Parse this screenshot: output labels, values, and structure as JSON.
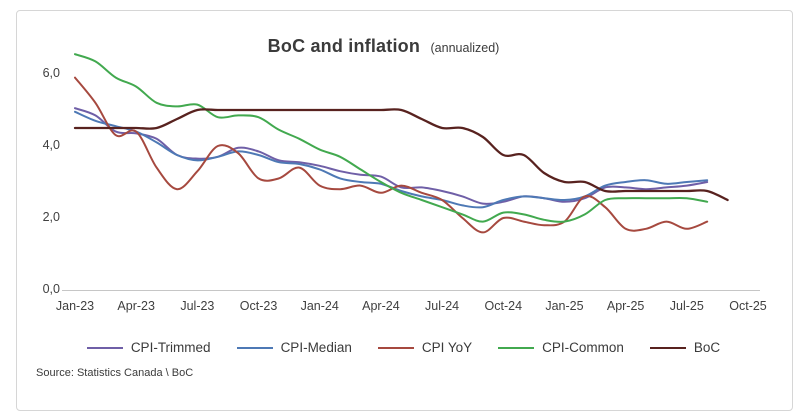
{
  "chart_data": {
    "type": "line",
    "title": "BoC and inflation",
    "title_suffix": "(annualized)",
    "source": "Source: Statistics Canada \\ BoC",
    "legend_position": "bottom",
    "grid": false,
    "ylim": [
      0,
      6
    ],
    "y_tick_values": [
      0,
      2,
      4,
      6
    ],
    "y_tick_labels": [
      "0,0",
      "2,0",
      "4,0",
      "6,0"
    ],
    "x_tick_labels": [
      "Jan-23",
      "Apr-23",
      "Jul-23",
      "Oct-23",
      "Jan-24",
      "Apr-24",
      "Jul-24",
      "Oct-24",
      "Jan-25",
      "Apr-25",
      "Jul-25",
      "Oct-25"
    ],
    "categories": [
      "Jan-23",
      "Feb-23",
      "Mar-23",
      "Apr-23",
      "May-23",
      "Jun-23",
      "Jul-23",
      "Aug-23",
      "Sep-23",
      "Oct-23",
      "Nov-23",
      "Dec-23",
      "Jan-24",
      "Feb-24",
      "Mar-24",
      "Apr-24",
      "May-24",
      "Jun-24",
      "Jul-24",
      "Aug-24",
      "Sep-24",
      "Oct-24",
      "Nov-24",
      "Dec-24",
      "Jan-25",
      "Feb-25",
      "Mar-25",
      "Apr-25",
      "May-25",
      "Jun-25",
      "Jul-25",
      "Aug-25",
      "Sep-25"
    ],
    "series": [
      {
        "name": "CPI-Trimmed",
        "color": "#6f5fa7",
        "values": [
          5.05,
          4.85,
          4.4,
          4.35,
          4.2,
          3.75,
          3.65,
          3.7,
          3.95,
          3.85,
          3.6,
          3.55,
          3.45,
          3.3,
          3.2,
          3.15,
          2.85,
          2.85,
          2.75,
          2.6,
          2.4,
          2.45,
          2.6,
          2.55,
          2.45,
          2.55,
          2.85,
          2.85,
          2.8,
          2.85,
          2.9,
          3.0
        ]
      },
      {
        "name": "CPI-Median",
        "color": "#4e79b5",
        "values": [
          4.95,
          4.7,
          4.55,
          4.4,
          4.1,
          3.75,
          3.6,
          3.7,
          3.85,
          3.75,
          3.55,
          3.5,
          3.35,
          3.1,
          3.0,
          2.95,
          2.75,
          2.6,
          2.5,
          2.35,
          2.3,
          2.5,
          2.6,
          2.55,
          2.5,
          2.6,
          2.9,
          3.0,
          3.05,
          2.95,
          3.0,
          3.05
        ]
      },
      {
        "name": "CPI YoY",
        "color": "#a6493f",
        "values": [
          5.9,
          5.2,
          4.3,
          4.4,
          3.4,
          2.8,
          3.3,
          4.0,
          3.8,
          3.1,
          3.1,
          3.4,
          2.9,
          2.8,
          2.9,
          2.7,
          2.9,
          2.7,
          2.5,
          2.0,
          1.6,
          2.0,
          1.9,
          1.8,
          1.9,
          2.6,
          2.3,
          1.7,
          1.7,
          1.9,
          1.7,
          1.9
        ]
      },
      {
        "name": "CPI-Common",
        "color": "#42a94f",
        "values": [
          6.55,
          6.35,
          5.9,
          5.65,
          5.2,
          5.1,
          5.15,
          4.8,
          4.85,
          4.8,
          4.45,
          4.2,
          3.9,
          3.7,
          3.35,
          3.0,
          2.7,
          2.5,
          2.3,
          2.1,
          1.9,
          2.15,
          2.1,
          1.95,
          1.9,
          2.1,
          2.5,
          2.55,
          2.55,
          2.55,
          2.55,
          2.45
        ]
      },
      {
        "name": "BoC",
        "color": "#58221f",
        "values": [
          4.5,
          4.5,
          4.5,
          4.5,
          4.5,
          4.75,
          5.0,
          5.0,
          5.0,
          5.0,
          5.0,
          5.0,
          5.0,
          5.0,
          5.0,
          5.0,
          5.0,
          4.75,
          4.5,
          4.5,
          4.25,
          3.75,
          3.75,
          3.25,
          3.0,
          3.0,
          2.75,
          2.75,
          2.75,
          2.75,
          2.75,
          2.75,
          2.5
        ]
      }
    ]
  }
}
